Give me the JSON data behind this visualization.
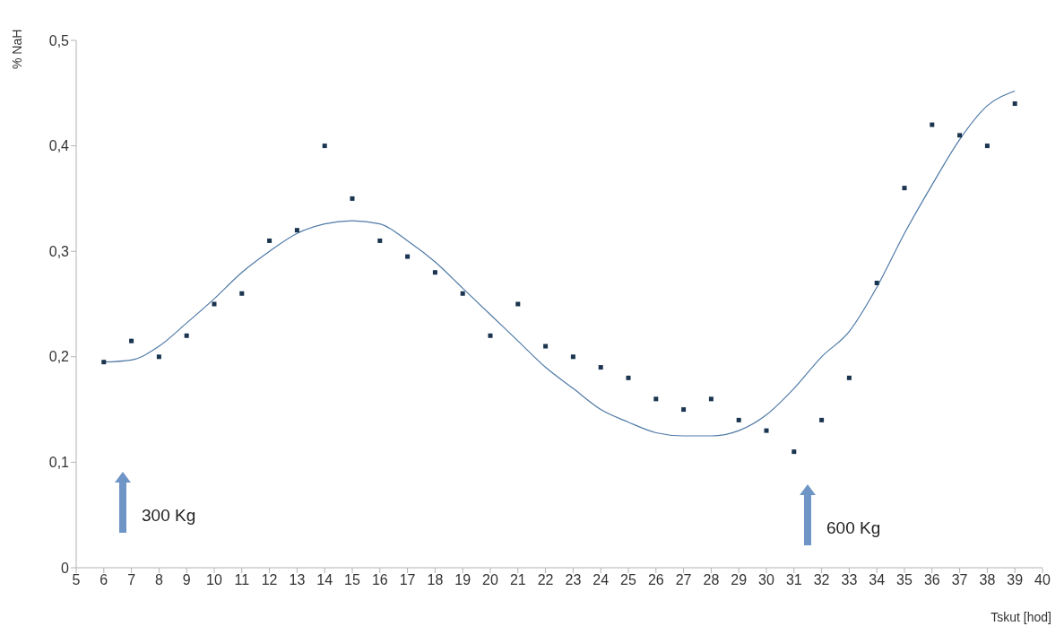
{
  "chart_data": {
    "type": "scatter",
    "xlabel": "Tskut [hod]",
    "ylabel": "% NaH",
    "marker": "square",
    "grid": false,
    "legend": false,
    "xlim": [
      5,
      40
    ],
    "xticks": [
      5,
      6,
      7,
      8,
      9,
      10,
      11,
      12,
      13,
      14,
      15,
      16,
      17,
      18,
      19,
      20,
      21,
      22,
      23,
      24,
      25,
      26,
      27,
      28,
      29,
      30,
      31,
      32,
      33,
      34,
      35,
      36,
      37,
      38,
      39,
      40
    ],
    "ylim": [
      0,
      0.5
    ],
    "yticks": [
      0,
      {
        "value": 0.1,
        "label": "0,1"
      },
      {
        "value": 0.2,
        "label": "0,2"
      },
      {
        "value": 0.3,
        "label": "0,3"
      },
      {
        "value": 0.4,
        "label": "0,4"
      },
      {
        "value": 0.5,
        "label": "0,5"
      }
    ],
    "x": [
      6,
      7,
      8,
      9,
      10,
      11,
      12,
      13,
      14,
      15,
      16,
      17,
      18,
      19,
      20,
      21,
      22,
      23,
      24,
      25,
      26,
      27,
      28,
      29,
      30,
      31,
      32,
      33,
      34,
      35,
      36,
      37,
      38,
      39
    ],
    "series": [
      {
        "type": "scatter",
        "color": "#1b3550",
        "values": [
          0.195,
          0.215,
          0.2,
          0.22,
          0.25,
          0.26,
          0.31,
          0.32,
          0.4,
          0.35,
          0.31,
          0.295,
          0.28,
          0.26,
          0.22,
          0.25,
          0.21,
          0.2,
          0.19,
          0.18,
          0.16,
          0.15,
          0.16,
          0.14,
          0.13,
          0.11,
          0.14,
          0.18,
          0.27,
          0.36,
          0.42,
          0.41,
          0.4,
          0.44
        ]
      },
      {
        "type": "line",
        "color": "#4f7aa6",
        "marker": "none",
        "x": [
          6,
          7,
          8,
          9,
          10,
          11,
          12,
          13,
          14,
          15,
          16,
          17,
          18,
          19,
          20,
          21,
          22,
          23,
          24,
          25,
          26,
          27,
          28,
          29,
          30,
          31,
          32,
          33,
          34,
          35,
          36,
          37,
          38,
          39
        ],
        "values": [
          0.195,
          0.197,
          0.21,
          0.232,
          0.255,
          0.28,
          0.3,
          0.317,
          0.326,
          0.329,
          0.326,
          0.31,
          0.29,
          0.265,
          0.24,
          0.215,
          0.19,
          0.17,
          0.15,
          0.138,
          0.128,
          0.125,
          0.125,
          0.13,
          0.145,
          0.17,
          0.2,
          0.224,
          0.266,
          0.317,
          0.363,
          0.406,
          0.438,
          0.452
        ]
      }
    ],
    "annotations": [
      "300 Kg",
      "600 Kg"
    ]
  }
}
